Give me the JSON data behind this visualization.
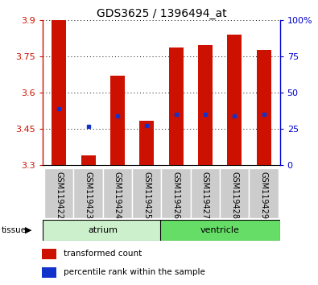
{
  "title": "GDS3625 / 1396494_at",
  "samples": [
    "GSM119422",
    "GSM119423",
    "GSM119424",
    "GSM119425",
    "GSM119426",
    "GSM119427",
    "GSM119428",
    "GSM119429"
  ],
  "red_tops": [
    3.9,
    3.34,
    3.67,
    3.485,
    3.785,
    3.795,
    3.84,
    3.775
  ],
  "blue_vals": [
    3.535,
    3.46,
    3.505,
    3.465,
    3.51,
    3.51,
    3.505,
    3.51
  ],
  "bar_bottom": 3.3,
  "ylim": [
    3.3,
    3.9
  ],
  "yticks_left": [
    3.3,
    3.45,
    3.6,
    3.75,
    3.9
  ],
  "yticks_right": [
    0,
    25,
    50,
    75,
    100
  ],
  "groups": [
    {
      "label": "atrium",
      "start": 0,
      "end": 4,
      "color": "#ccf0cc"
    },
    {
      "label": "ventricle",
      "start": 4,
      "end": 8,
      "color": "#66dd66"
    }
  ],
  "tissue_label": "tissue",
  "red_color": "#cc1100",
  "blue_color": "#1133cc",
  "bar_width": 0.5,
  "title_fontsize": 10,
  "tick_fontsize": 8,
  "sample_fontsize": 7,
  "legend_label_red": "transformed count",
  "legend_label_blue": "percentile rank within the sample",
  "right_axis_color": "#0000cc"
}
